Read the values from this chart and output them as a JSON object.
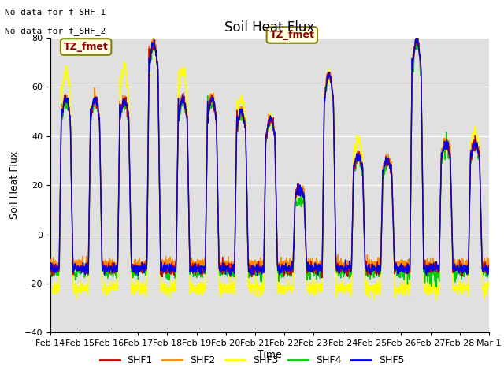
{
  "title": "Soil Heat Flux",
  "ylabel": "Soil Heat Flux",
  "xlabel": "Time",
  "ylim": [
    -40,
    80
  ],
  "yticks": [
    -40,
    -20,
    0,
    20,
    40,
    60,
    80
  ],
  "colors": {
    "SHF1": "#cc0000",
    "SHF2": "#ff8800",
    "SHF3": "#ffff00",
    "SHF4": "#00cc00",
    "SHF5": "#0000ee"
  },
  "legend_labels": [
    "SHF1",
    "SHF2",
    "SHF3",
    "SHF4",
    "SHF5"
  ],
  "no_data_text": [
    "No data for f_SHF_1",
    "No data for f_SHF_2"
  ],
  "tz_label": "TZ_fmet",
  "xtick_labels": [
    "Feb 14",
    "Feb 15",
    "Feb 16",
    "Feb 17",
    "Feb 18",
    "Feb 19",
    "Feb 20",
    "Feb 21",
    "Feb 22",
    "Feb 23",
    "Feb 24",
    "Feb 25",
    "Feb 26",
    "Feb 27",
    "Feb 28",
    "Mar 1"
  ],
  "plot_bg_color": "#e0e0e0",
  "title_fontsize": 12,
  "label_fontsize": 9,
  "tick_fontsize": 8
}
